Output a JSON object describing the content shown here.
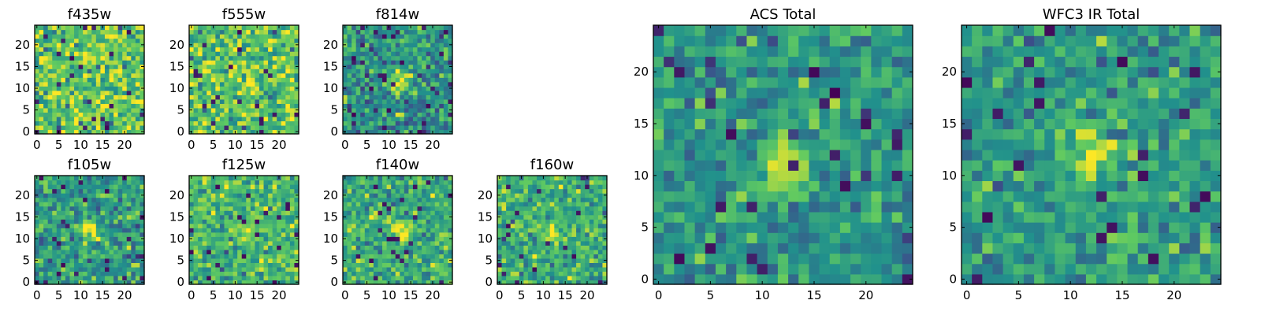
{
  "figure": {
    "colormap": "viridis",
    "colormap_stops": [
      "#440154",
      "#3b528b",
      "#21918c",
      "#5ec962",
      "#fde725"
    ],
    "frame_color": "#000000"
  },
  "chart_data": [
    {
      "type": "heatmap",
      "title": "f435w",
      "grid_size": 25,
      "xticks": [
        0,
        5,
        10,
        15,
        20
      ],
      "yticks": [
        0,
        5,
        10,
        15,
        20
      ],
      "xlim": [
        0,
        24
      ],
      "ylim": [
        0,
        24
      ],
      "source_center": null,
      "source_strength": 0.0,
      "noise_mean": 0.74,
      "noise_std": 0.17
    },
    {
      "type": "heatmap",
      "title": "f555w",
      "grid_size": 25,
      "xticks": [
        0,
        5,
        10,
        15,
        20
      ],
      "yticks": [
        0,
        5,
        10,
        15,
        20
      ],
      "xlim": [
        0,
        24
      ],
      "ylim": [
        0,
        24
      ],
      "source_center": [
        12,
        11
      ],
      "source_strength": 0.15,
      "noise_mean": 0.72,
      "noise_std": 0.17
    },
    {
      "type": "heatmap",
      "title": "f814w",
      "grid_size": 25,
      "xticks": [
        0,
        5,
        10,
        15,
        20
      ],
      "yticks": [
        0,
        5,
        10,
        15,
        20
      ],
      "xlim": [
        0,
        24
      ],
      "ylim": [
        0,
        24
      ],
      "source_center": [
        12,
        11
      ],
      "source_strength": 0.55,
      "noise_mean": 0.5,
      "noise_std": 0.16
    },
    {
      "type": "heatmap",
      "title": "f105w",
      "grid_size": 25,
      "xticks": [
        0,
        5,
        10,
        15,
        20
      ],
      "yticks": [
        0,
        5,
        10,
        15,
        20
      ],
      "xlim": [
        0,
        24
      ],
      "ylim": [
        0,
        24
      ],
      "source_center": [
        12,
        12
      ],
      "source_strength": 0.45,
      "noise_mean": 0.55,
      "noise_std": 0.14
    },
    {
      "type": "heatmap",
      "title": "f125w",
      "grid_size": 25,
      "xticks": [
        0,
        5,
        10,
        15,
        20
      ],
      "yticks": [
        0,
        5,
        10,
        15,
        20
      ],
      "xlim": [
        0,
        24
      ],
      "ylim": [
        0,
        24
      ],
      "source_center": [
        12,
        12
      ],
      "source_strength": 0.3,
      "noise_mean": 0.67,
      "noise_std": 0.14
    },
    {
      "type": "heatmap",
      "title": "f140w",
      "grid_size": 25,
      "xticks": [
        0,
        5,
        10,
        15,
        20
      ],
      "yticks": [
        0,
        5,
        10,
        15,
        20
      ],
      "xlim": [
        0,
        24
      ],
      "ylim": [
        0,
        24
      ],
      "source_center": [
        13,
        12
      ],
      "source_strength": 0.4,
      "noise_mean": 0.62,
      "noise_std": 0.14
    },
    {
      "type": "heatmap",
      "title": "f160w",
      "grid_size": 25,
      "xticks": [
        0,
        5,
        10,
        15,
        20
      ],
      "yticks": [
        0,
        5,
        10,
        15,
        20
      ],
      "xlim": [
        0,
        24
      ],
      "ylim": [
        0,
        24
      ],
      "source_center": [
        12,
        11
      ],
      "source_strength": 0.4,
      "noise_mean": 0.62,
      "noise_std": 0.14
    },
    {
      "type": "heatmap",
      "title": "ACS Total",
      "grid_size": 25,
      "xticks": [
        0,
        5,
        10,
        15,
        20
      ],
      "yticks": [
        0,
        5,
        10,
        15,
        20
      ],
      "xlim": [
        0,
        24
      ],
      "ylim": [
        0,
        24
      ],
      "source_center": [
        12,
        11
      ],
      "source_strength": 0.5,
      "noise_mean": 0.52,
      "noise_std": 0.14
    },
    {
      "type": "heatmap",
      "title": "WFC3 IR Total",
      "grid_size": 25,
      "xticks": [
        0,
        5,
        10,
        15,
        20
      ],
      "yticks": [
        0,
        5,
        10,
        15,
        20
      ],
      "xlim": [
        0,
        24
      ],
      "ylim": [
        0,
        24
      ],
      "source_center": [
        12,
        12
      ],
      "source_strength": 0.45,
      "noise_mean": 0.55,
      "noise_std": 0.12
    }
  ]
}
